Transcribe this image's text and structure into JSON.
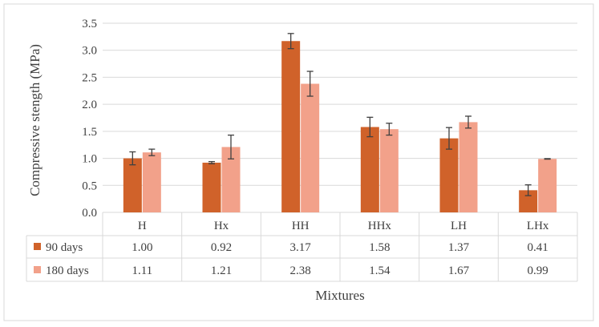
{
  "chart_data": {
    "type": "bar",
    "title": "",
    "ylabel": "Compressive stength (MPa)",
    "xlabel": "Mixtures",
    "ylim": [
      0,
      3.5
    ],
    "yticks": [
      "0.0",
      "0.5",
      "1.0",
      "1.5",
      "2.0",
      "2.5",
      "3.0",
      "3.5"
    ],
    "ytick_values": [
      0,
      0.5,
      1.0,
      1.5,
      2.0,
      2.5,
      3.0,
      3.5
    ],
    "categories": [
      "H",
      "Hx",
      "HH",
      "HHx",
      "LH",
      "LHx"
    ],
    "series": [
      {
        "name": "90 days",
        "color": "#D0622A",
        "values": [
          1.0,
          0.92,
          3.17,
          1.58,
          1.37,
          0.41
        ],
        "labels": [
          "1.00",
          "0.92",
          "3.17",
          "1.58",
          "1.37",
          "0.41"
        ],
        "errors": [
          0.12,
          0.02,
          0.14,
          0.18,
          0.2,
          0.1
        ]
      },
      {
        "name": "180 days",
        "color": "#F2A18A",
        "values": [
          1.11,
          1.21,
          2.38,
          1.54,
          1.67,
          0.99
        ],
        "labels": [
          "1.11",
          "1.21",
          "2.38",
          "1.54",
          "1.67",
          "0.99"
        ],
        "errors": [
          0.06,
          0.22,
          0.23,
          0.11,
          0.11,
          0.005
        ]
      }
    ],
    "grid": true,
    "legend": "data-table"
  },
  "colors": {
    "grid": "#d9d9d9",
    "axis_text": "#404040",
    "error_bar": "#404040"
  }
}
